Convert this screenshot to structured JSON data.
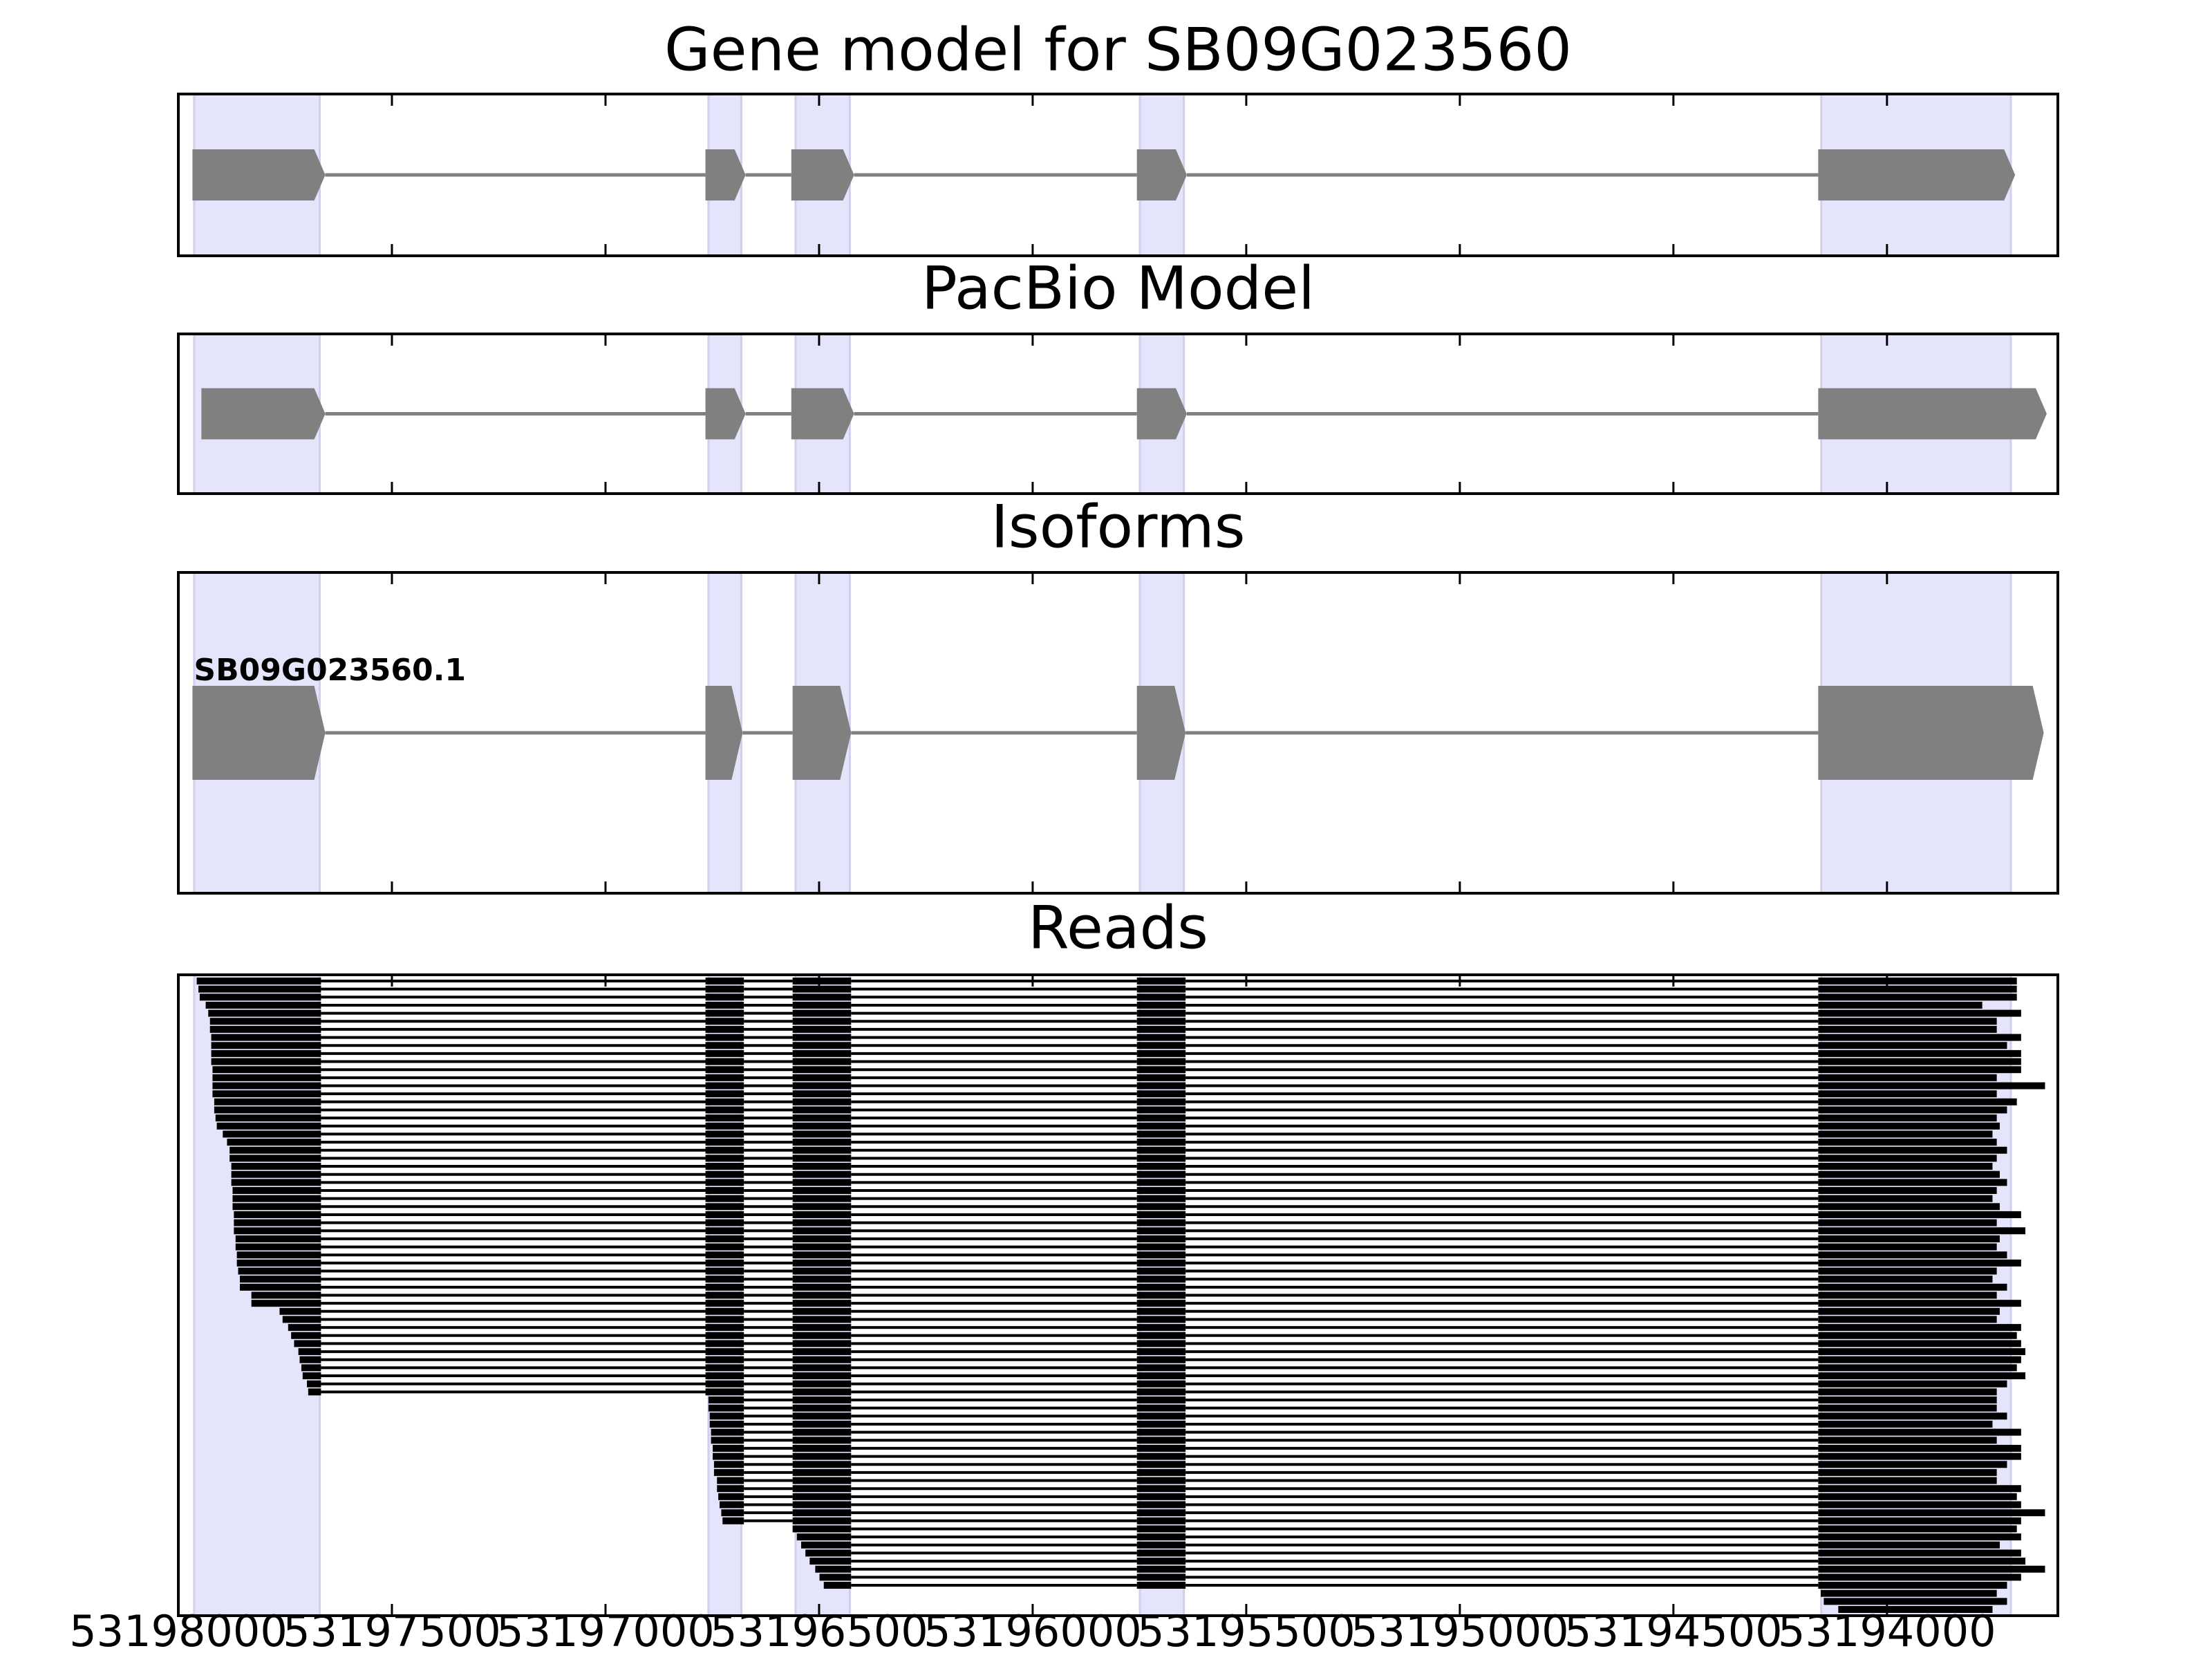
{
  "chart_data": [
    {
      "type": "gene",
      "title": "Gene model for SB09G023560",
      "xlim": [
        53198000,
        53193600
      ],
      "xticks": [
        53198000,
        53197500,
        53197000,
        53196500,
        53196000,
        53195500,
        53195000,
        53194500,
        53194000
      ],
      "highlight_color": "#e4e4fb",
      "color": "#808080",
      "highlights": [
        [
          53197963,
          53197669
        ],
        [
          53196759,
          53196682
        ],
        [
          53196555,
          53196428
        ],
        [
          53195749,
          53195646
        ],
        [
          53194154,
          53193710
        ]
      ],
      "exons": [
        [
          53197967,
          53197656
        ],
        [
          53196766,
          53196672
        ],
        [
          53196565,
          53196418
        ],
        [
          53195756,
          53195639
        ],
        [
          53194161,
          53193700
        ]
      ]
    },
    {
      "type": "gene",
      "title": "PacBio Model",
      "xlim": [
        53198000,
        53193600
      ],
      "xticks": [
        53198000,
        53197500,
        53197000,
        53196500,
        53196000,
        53195500,
        53195000,
        53194500,
        53194000
      ],
      "highlight_color": "#e4e4fb",
      "color": "#808080",
      "highlights": [
        [
          53197963,
          53197669
        ],
        [
          53196759,
          53196682
        ],
        [
          53196555,
          53196428
        ],
        [
          53195749,
          53195646
        ],
        [
          53194154,
          53193710
        ]
      ],
      "exons": [
        [
          53197946,
          53197656
        ],
        [
          53196766,
          53196672
        ],
        [
          53196565,
          53196418
        ],
        [
          53195756,
          53195639
        ],
        [
          53194161,
          53193626
        ]
      ]
    },
    {
      "type": "isoform",
      "title": "Isoforms",
      "xlim": [
        53198000,
        53193600
      ],
      "xticks": [
        53198000,
        53197500,
        53197000,
        53196500,
        53196000,
        53195500,
        53195000,
        53194500,
        53194000
      ],
      "highlight_color": "#e4e4fb",
      "color": "#808080",
      "highlights": [
        [
          53197963,
          53197669
        ],
        [
          53196759,
          53196682
        ],
        [
          53196555,
          53196428
        ],
        [
          53195749,
          53195646
        ],
        [
          53194154,
          53193710
        ]
      ],
      "name": "SB09G023560.1",
      "exons": [
        [
          53197967,
          53197656
        ],
        [
          53196766,
          53196679
        ],
        [
          53196562,
          53196425
        ],
        [
          53195756,
          53195642
        ],
        [
          53194161,
          53193633
        ]
      ]
    },
    {
      "type": "reads",
      "title": "Reads",
      "xlim": [
        53198000,
        53193600
      ],
      "xticks": [
        53198000,
        53197500,
        53197000,
        53196500,
        53196000,
        53195500,
        53195000,
        53194500,
        53194000
      ],
      "highlight_color": "#e4e4fb",
      "color": "#000000",
      "highlights": [
        [
          53197963,
          53197669
        ],
        [
          53196759,
          53196682
        ],
        [
          53196555,
          53196428
        ],
        [
          53195749,
          53195646
        ],
        [
          53194154,
          53193710
        ]
      ],
      "exons": [
        [
          53197967,
          53197666
        ],
        [
          53196766,
          53196676
        ],
        [
          53196562,
          53196425
        ],
        [
          53195756,
          53195642
        ],
        [
          53194161,
          53193600
        ]
      ],
      "reads": [
        [
          53197957,
          53193696
        ],
        [
          53197953,
          53193696
        ],
        [
          53197950,
          53193696
        ],
        [
          53197936,
          53193777
        ],
        [
          53197930,
          53193686
        ],
        [
          53197926,
          53193743
        ],
        [
          53197926,
          53193743
        ],
        [
          53197923,
          53193686
        ],
        [
          53197923,
          53193719
        ],
        [
          53197923,
          53193686
        ],
        [
          53197923,
          53193686
        ],
        [
          53197920,
          53193686
        ],
        [
          53197920,
          53193743
        ],
        [
          53197920,
          53193630
        ],
        [
          53197920,
          53193743
        ],
        [
          53197916,
          53193696
        ],
        [
          53197916,
          53193719
        ],
        [
          53197913,
          53193743
        ],
        [
          53197910,
          53193736
        ],
        [
          53197896,
          53193753
        ],
        [
          53197886,
          53193743
        ],
        [
          53197880,
          53193719
        ],
        [
          53197880,
          53193743
        ],
        [
          53197876,
          53193753
        ],
        [
          53197876,
          53193736
        ],
        [
          53197876,
          53193719
        ],
        [
          53197873,
          53193743
        ],
        [
          53197873,
          53193753
        ],
        [
          53197873,
          53193736
        ],
        [
          53197870,
          53193686
        ],
        [
          53197870,
          53193743
        ],
        [
          53197870,
          53193676
        ],
        [
          53197866,
          53193736
        ],
        [
          53197866,
          53193743
        ],
        [
          53197863,
          53193719
        ],
        [
          53197863,
          53193686
        ],
        [
          53197860,
          53193743
        ],
        [
          53197856,
          53193753
        ],
        [
          53197856,
          53193719
        ],
        [
          53197829,
          53193743
        ],
        [
          53197829,
          53193686
        ],
        [
          53197763,
          53193736
        ],
        [
          53197756,
          53193743
        ],
        [
          53197743,
          53193686
        ],
        [
          53197736,
          53193696
        ],
        [
          53197729,
          53193686
        ],
        [
          53197719,
          53193676
        ],
        [
          53197716,
          53193686
        ],
        [
          53197712,
          53193696
        ],
        [
          53197709,
          53193676
        ],
        [
          53197699,
          53193719
        ],
        [
          53197696,
          53193743
        ],
        [
          53196759,
          53193743
        ],
        [
          53196759,
          53193743
        ],
        [
          53196756,
          53193719
        ],
        [
          53196756,
          53193753
        ],
        [
          53196753,
          53193686
        ],
        [
          53196753,
          53193743
        ],
        [
          53196749,
          53193686
        ],
        [
          53196749,
          53193686
        ],
        [
          53196746,
          53193719
        ],
        [
          53196746,
          53193743
        ],
        [
          53196739,
          53193743
        ],
        [
          53196739,
          53193686
        ],
        [
          53196736,
          53193696
        ],
        [
          53196733,
          53193686
        ],
        [
          53196729,
          53193630
        ],
        [
          53196726,
          53193686
        ],
        [
          53196562,
          53193696
        ],
        [
          53196552,
          53193686
        ],
        [
          53196542,
          53193736
        ],
        [
          53196532,
          53193686
        ],
        [
          53196522,
          53193676
        ],
        [
          53196509,
          53193630
        ],
        [
          53196499,
          53193686
        ],
        [
          53196489,
          53193719
        ],
        [
          53194155,
          53193743
        ],
        [
          53194148,
          53193719
        ],
        [
          53194114,
          53193753
        ]
      ]
    }
  ]
}
